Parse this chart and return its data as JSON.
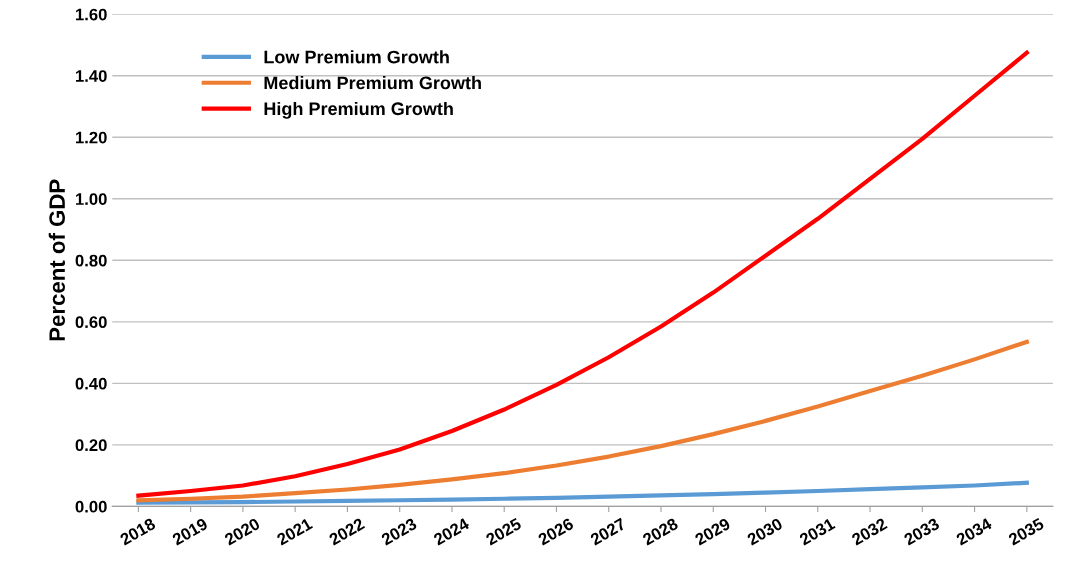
{
  "chart_data": {
    "type": "line",
    "ylabel": "Percent of GDP",
    "categories": [
      "2018",
      "2019",
      "2020",
      "2021",
      "2022",
      "2023",
      "2024",
      "2025",
      "2026",
      "2027",
      "2028",
      "2029",
      "2030",
      "2031",
      "2032",
      "2033",
      "2034",
      "2035"
    ],
    "series": [
      {
        "name": "Low Premium Growth",
        "color": "#5b9bd5",
        "values": [
          0.012,
          0.013,
          0.014,
          0.016,
          0.018,
          0.02,
          0.022,
          0.025,
          0.028,
          0.032,
          0.036,
          0.04,
          0.045,
          0.05,
          0.056,
          0.062,
          0.068,
          0.077
        ]
      },
      {
        "name": "Medium Premium Growth",
        "color": "#ed7d31",
        "values": [
          0.02,
          0.025,
          0.032,
          0.043,
          0.055,
          0.07,
          0.088,
          0.108,
          0.133,
          0.162,
          0.196,
          0.235,
          0.278,
          0.325,
          0.375,
          0.425,
          0.478,
          0.535
        ]
      },
      {
        "name": "High Premium Growth",
        "color": "#ff0000",
        "values": [
          0.035,
          0.05,
          0.068,
          0.098,
          0.138,
          0.185,
          0.245,
          0.315,
          0.395,
          0.485,
          0.585,
          0.695,
          0.815,
          0.935,
          1.065,
          1.195,
          1.335,
          1.475
        ]
      }
    ],
    "ylim": [
      0,
      1.6
    ],
    "yticks": [
      {
        "value": 0,
        "label": "0.00"
      },
      {
        "value": 0.2,
        "label": "0.20"
      },
      {
        "value": 0.4,
        "label": "0.40"
      },
      {
        "value": 0.6,
        "label": "0.60"
      },
      {
        "value": 0.8,
        "label": "0.80"
      },
      {
        "value": 1.0,
        "label": "1.00"
      },
      {
        "value": 1.2,
        "label": "1.20"
      },
      {
        "value": 1.4,
        "label": "1.40"
      },
      {
        "value": 1.6,
        "label": "1.60"
      }
    ],
    "grid": "y",
    "legend": "top left",
    "marker": "none",
    "line_style": "solid"
  }
}
